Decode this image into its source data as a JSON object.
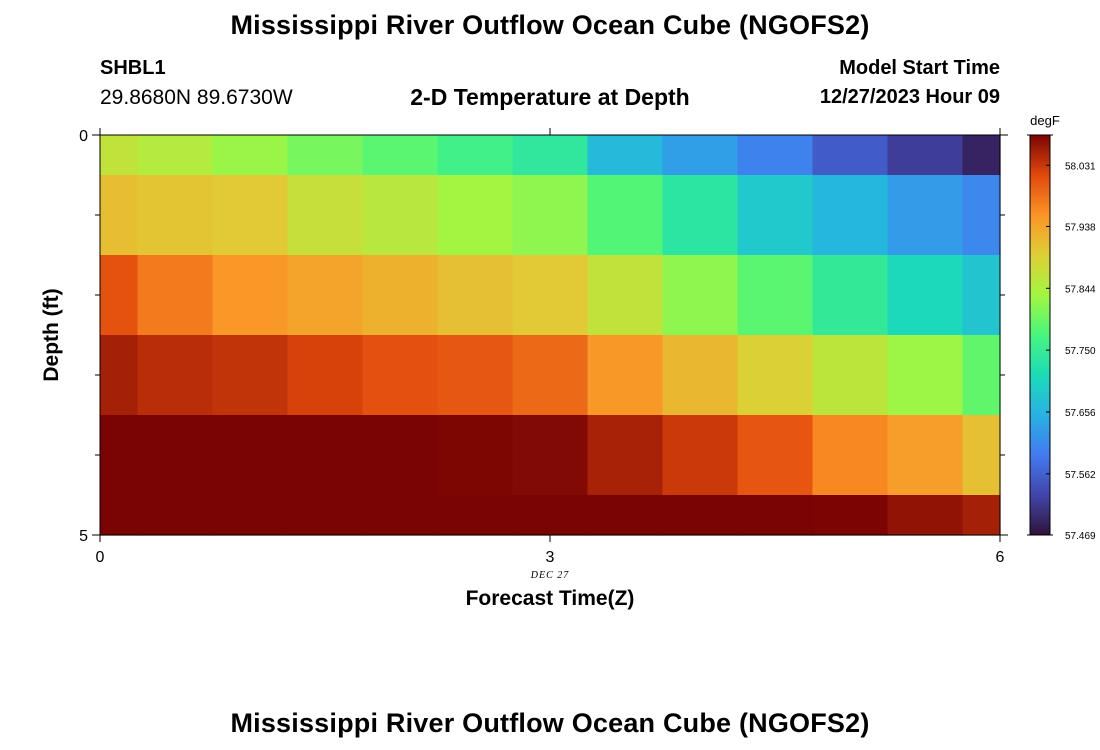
{
  "header": {
    "title": "Mississippi River Outflow Ocean Cube (NGOFS2)",
    "station_id": "SHBL1",
    "station_coords": "29.8680N  89.6730W",
    "plot_title": "2-D Temperature at Depth",
    "start_label": "Model Start Time",
    "start_time": "12/27/2023 Hour 09"
  },
  "footer": {
    "title": "Mississippi River Outflow Ocean Cube (NGOFS2)"
  },
  "chart_data": {
    "type": "heatmap",
    "title": "2-D Temperature at Depth",
    "xlabel": "Forecast Time(Z)",
    "ylabel": "Depth (ft)",
    "x_tick_labels": [
      "0",
      "3",
      "6"
    ],
    "x_sublabel": "DEC 27",
    "y_tick_labels": [
      "0",
      "5"
    ],
    "xlim": [
      0,
      6
    ],
    "ylim": [
      0,
      5
    ],
    "y_inverted": true,
    "colorbar": {
      "unit": "degF",
      "ticks": [
        "58.031",
        "57.938",
        "57.844",
        "57.750",
        "57.656",
        "57.562",
        "57.469"
      ],
      "min": 57.469,
      "max": 58.077,
      "colormap": "turbo"
    },
    "x_edges": [
      0,
      0.25,
      0.75,
      1.25,
      1.75,
      2.25,
      2.75,
      3.25,
      3.75,
      4.25,
      4.75,
      5.25,
      5.75,
      6
    ],
    "y_edges": [
      0,
      0.5,
      1.5,
      2.5,
      3.5,
      4.5,
      5
    ],
    "values": [
      [
        57.865,
        57.85,
        57.827,
        57.805,
        57.785,
        57.763,
        57.74,
        57.665,
        57.63,
        57.6,
        57.555,
        57.52,
        57.49
      ],
      [
        57.912,
        57.905,
        57.9,
        57.87,
        57.855,
        57.835,
        57.82,
        57.78,
        57.735,
        57.685,
        57.66,
        57.628,
        57.605
      ],
      [
        58.008,
        57.975,
        57.952,
        57.938,
        57.925,
        57.91,
        57.9,
        57.865,
        57.82,
        57.785,
        57.745,
        57.71,
        57.68
      ],
      [
        58.052,
        58.04,
        58.035,
        58.022,
        58.01,
        58.004,
        57.99,
        57.95,
        57.918,
        57.892,
        57.86,
        57.83,
        57.79
      ],
      [
        58.09,
        58.086,
        58.084,
        58.082,
        58.08,
        58.075,
        58.072,
        58.05,
        58.03,
        58.005,
        57.965,
        57.945,
        57.91
      ],
      [
        58.145,
        58.142,
        58.141,
        58.14,
        58.138,
        58.138,
        58.137,
        58.108,
        58.094,
        58.084,
        58.076,
        58.064,
        58.052
      ]
    ]
  }
}
